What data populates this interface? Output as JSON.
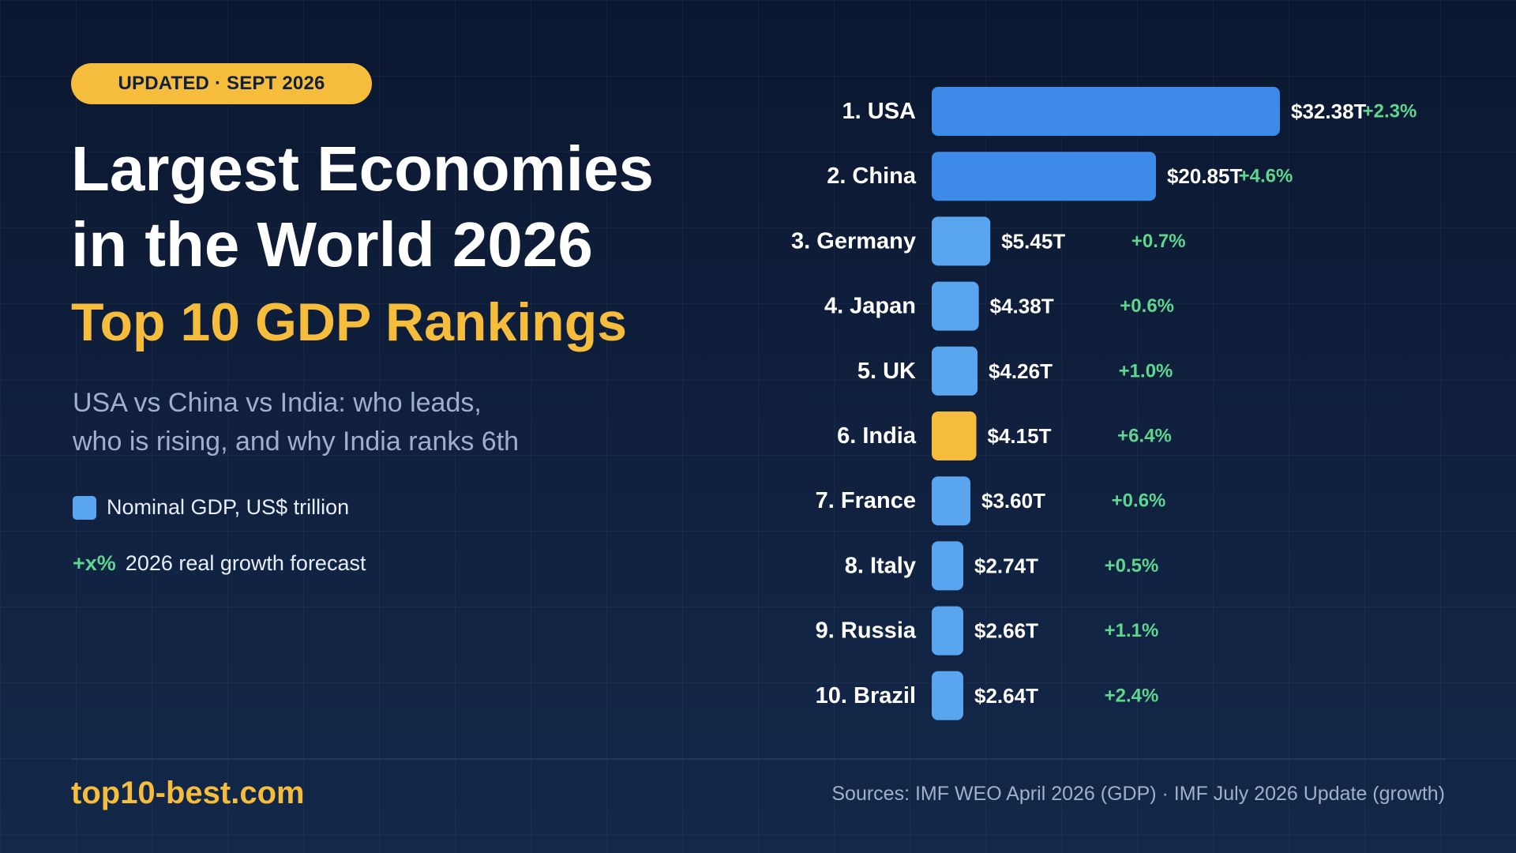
{
  "badge": "UPDATED · SEPT 2026",
  "title_line1": "Largest Economies",
  "title_line2": "in the World 2026",
  "subtitle": "Top 10 GDP Rankings",
  "tagline_line1": "USA vs China vs India: who leads,",
  "tagline_line2": "who is rising, and why India ranks 6th",
  "legend": {
    "gdp_label": "Nominal GDP, US$ trillion",
    "growth_key": "+x%",
    "growth_label": "2026 real growth forecast"
  },
  "footer": {
    "site": "top10-best.com",
    "sources": "Sources: IMF WEO April 2026 (GDP) · IMF July 2026 Update (growth)"
  },
  "colors": {
    "background": "#10213f",
    "accent": "#f5bd3b",
    "bar_top": "#3d8ae8",
    "bar": "#5aa5f0",
    "highlight": "#f5bd3b",
    "growth": "#5fd68d"
  },
  "chart_data": {
    "type": "bar",
    "orientation": "horizontal",
    "categories": [
      "1. USA",
      "2. China",
      "3. Germany",
      "4. Japan",
      "5. UK",
      "6. India",
      "7. France",
      "8. Italy",
      "9. Russia",
      "10. Brazil"
    ],
    "values": [
      32.38,
      20.85,
      5.45,
      4.38,
      4.26,
      4.15,
      3.6,
      2.74,
      2.66,
      2.64
    ],
    "value_labels": [
      "$32.38T",
      "$20.85T",
      "$5.45T",
      "$4.38T",
      "$4.26T",
      "$4.15T",
      "$3.60T",
      "$2.74T",
      "$2.66T",
      "$2.64T"
    ],
    "growth_labels": [
      "+2.3%",
      "+4.6%",
      "+0.7%",
      "+0.6%",
      "+1.0%",
      "+6.4%",
      "+0.6%",
      "+0.5%",
      "+1.1%",
      "+2.4%"
    ],
    "growth": [
      2.3,
      4.6,
      0.7,
      0.6,
      1.0,
      6.4,
      0.6,
      0.5,
      1.1,
      2.4
    ],
    "highlight_index": 5,
    "units": "US$ trillion",
    "grid": false
  }
}
